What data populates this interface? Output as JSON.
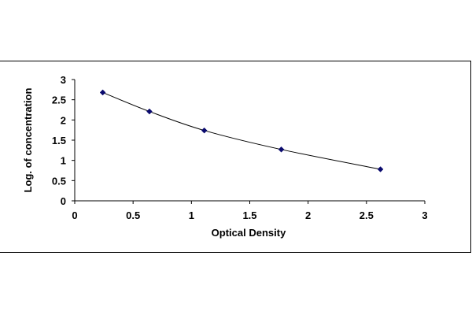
{
  "chart_data": {
    "type": "scatter",
    "title": "",
    "xlabel": "Optical Density",
    "ylabel": "Log. of concentration",
    "xlim": [
      0,
      3
    ],
    "ylim": [
      0,
      3
    ],
    "x_ticks": [
      "0",
      "0.5",
      "1",
      "1.5",
      "2",
      "2.5",
      "3"
    ],
    "y_ticks": [
      "0",
      "0.5",
      "1",
      "1.5",
      "2",
      "2.5",
      "3"
    ],
    "grid": false,
    "legend": "none",
    "series": [
      {
        "x": [
          0.24,
          0.64,
          1.11,
          1.77,
          2.62
        ],
        "y": [
          2.68,
          2.21,
          1.74,
          1.27,
          0.78
        ],
        "marker": "diamond",
        "color": "#0a0a6e",
        "trendline": "smooth"
      }
    ]
  }
}
